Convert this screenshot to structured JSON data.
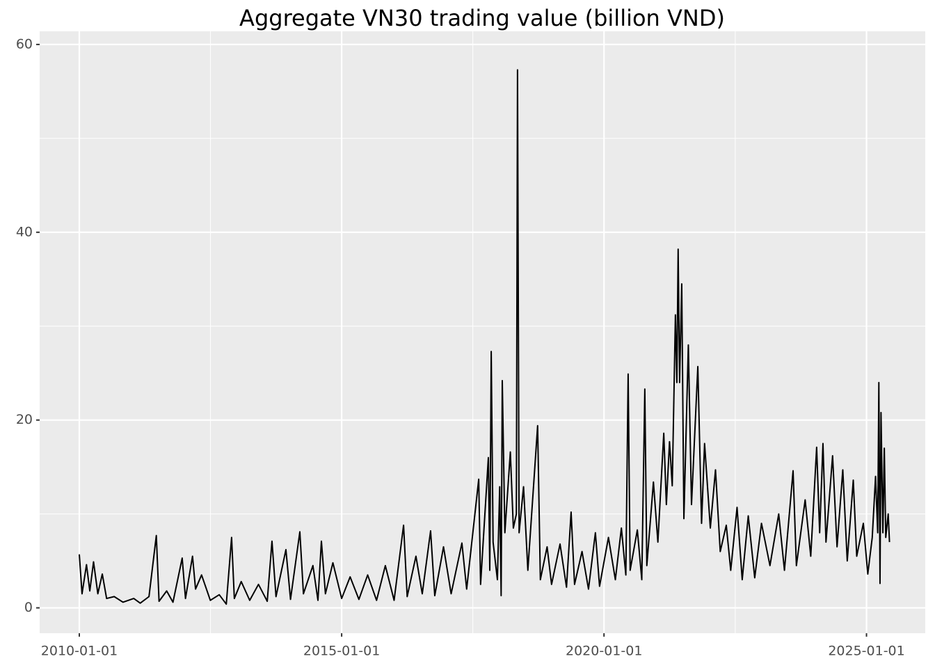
{
  "chart_data": {
    "type": "line",
    "title": "Aggregate VN30 trading value (billion VND)",
    "x": [
      "2010-01-01",
      "2010-01-20",
      "2010-02-20",
      "2010-03-15",
      "2010-04-10",
      "2010-05-10",
      "2010-06-10",
      "2010-07-10",
      "2010-09-01",
      "2010-11-01",
      "2011-01-15",
      "2011-03-01",
      "2011-05-01",
      "2011-06-21",
      "2011-07-10",
      "2011-09-01",
      "2011-10-15",
      "2011-12-18",
      "2012-01-10",
      "2012-02-28",
      "2012-03-20",
      "2012-05-01",
      "2012-07-01",
      "2012-09-01",
      "2012-10-20",
      "2012-11-26",
      "2012-12-15",
      "2013-02-01",
      "2013-04-01",
      "2013-06-01",
      "2013-08-01",
      "2013-09-03",
      "2013-10-01",
      "2013-12-09",
      "2014-01-10",
      "2014-03-16",
      "2014-04-10",
      "2014-06-15",
      "2014-07-20",
      "2014-08-13",
      "2014-09-10",
      "2014-11-01",
      "2015-01-01",
      "2015-03-01",
      "2015-05-01",
      "2015-07-01",
      "2015-09-01",
      "2015-11-01",
      "2016-01-01",
      "2016-03-07",
      "2016-04-01",
      "2016-06-01",
      "2016-07-15",
      "2016-09-11",
      "2016-10-10",
      "2016-12-10",
      "2017-02-01",
      "2017-04-17",
      "2017-05-20",
      "2017-08-12",
      "2017-08-25",
      "2017-10-18",
      "2017-10-28",
      "2017-11-07",
      "2017-11-20",
      "2017-12-20",
      "2018-01-05",
      "2018-01-15",
      "2018-01-23",
      "2018-02-10",
      "2018-03-20",
      "2018-04-10",
      "2018-05-01",
      "2018-05-09",
      "2018-05-20",
      "2018-06-20",
      "2018-07-20",
      "2018-09-26",
      "2018-10-15",
      "2018-12-01",
      "2019-01-01",
      "2019-03-01",
      "2019-04-15",
      "2019-05-17",
      "2019-06-10",
      "2019-08-01",
      "2019-09-15",
      "2019-11-02",
      "2019-12-01",
      "2020-02-01",
      "2020-03-20",
      "2020-05-01",
      "2020-06-01",
      "2020-06-17",
      "2020-07-01",
      "2020-08-20",
      "2020-09-20",
      "2020-10-11",
      "2020-10-25",
      "2020-12-10",
      "2021-01-10",
      "2021-02-20",
      "2021-03-10",
      "2021-04-01",
      "2021-04-20",
      "2021-05-12",
      "2021-05-22",
      "2021-05-31",
      "2021-06-10",
      "2021-06-25",
      "2021-07-10",
      "2021-08-10",
      "2021-09-01",
      "2021-10-15",
      "2021-11-10",
      "2021-12-01",
      "2022-01-10",
      "2022-02-15",
      "2022-03-20",
      "2022-05-01",
      "2022-06-01",
      "2022-07-15",
      "2022-08-20",
      "2022-10-01",
      "2022-11-15",
      "2023-01-01",
      "2023-03-01",
      "2023-05-01",
      "2023-06-10",
      "2023-08-09",
      "2023-09-01",
      "2023-11-01",
      "2023-12-10",
      "2024-01-20",
      "2024-02-10",
      "2024-03-04",
      "2024-03-25",
      "2024-05-10",
      "2024-06-10",
      "2024-07-20",
      "2024-08-20",
      "2024-10-01",
      "2024-10-25",
      "2024-12-10",
      "2025-01-10",
      "2025-02-10",
      "2025-03-05",
      "2025-03-20",
      "2025-03-28",
      "2025-04-05",
      "2025-04-12",
      "2025-04-25",
      "2025-05-05",
      "2025-05-15",
      "2025-06-01",
      "2025-06-10"
    ],
    "values": [
      5.7,
      1.5,
      4.6,
      1.8,
      4.9,
      1.5,
      3.6,
      1.0,
      1.2,
      0.6,
      1.0,
      0.5,
      1.2,
      7.7,
      0.7,
      1.8,
      0.6,
      5.3,
      1.0,
      5.5,
      2.0,
      3.5,
      0.8,
      1.4,
      0.4,
      7.5,
      1.0,
      2.8,
      0.8,
      2.5,
      0.7,
      7.1,
      1.2,
      6.2,
      0.9,
      8.1,
      1.5,
      4.5,
      0.8,
      7.1,
      1.5,
      4.8,
      1.0,
      3.3,
      0.9,
      3.5,
      0.8,
      4.5,
      0.8,
      8.8,
      1.2,
      5.5,
      1.5,
      8.2,
      1.3,
      6.5,
      1.5,
      6.9,
      2.0,
      13.7,
      2.5,
      16.0,
      4.0,
      27.3,
      7.0,
      3.0,
      12.9,
      1.3,
      24.2,
      8.0,
      16.6,
      8.5,
      10.0,
      57.3,
      8.0,
      12.9,
      4.0,
      19.4,
      3.0,
      6.5,
      2.5,
      6.8,
      2.2,
      10.2,
      2.5,
      6.0,
      2.0,
      8.0,
      2.3,
      7.5,
      3.0,
      8.5,
      3.5,
      24.9,
      4.0,
      8.3,
      3.0,
      23.3,
      4.5,
      13.4,
      7.0,
      18.6,
      11.0,
      17.7,
      13.0,
      31.2,
      24.0,
      38.2,
      24.0,
      34.5,
      9.5,
      28.0,
      11.0,
      25.7,
      9.0,
      17.5,
      8.5,
      14.7,
      6.0,
      8.8,
      4.0,
      10.7,
      3.0,
      9.8,
      3.2,
      9.0,
      4.5,
      10.0,
      4.0,
      14.6,
      4.5,
      11.5,
      5.5,
      17.1,
      8.0,
      17.5,
      7.0,
      16.2,
      6.5,
      14.7,
      5.0,
      13.6,
      5.5,
      9.0,
      3.6,
      7.5,
      14.0,
      8.0,
      24.0,
      2.6,
      20.8,
      8.0,
      17.0,
      7.5,
      10.0,
      7.0
    ],
    "color": "#000000",
    "xlim": [
      "2009-03-31",
      "2026-02-14"
    ],
    "xticks": [
      "2010-01-01",
      "2015-01-01",
      "2020-01-01",
      "2025-01-01"
    ],
    "ylim": [
      -2.7,
      61.4
    ],
    "yticks": [
      0,
      20,
      40,
      60
    ],
    "grid": true
  }
}
